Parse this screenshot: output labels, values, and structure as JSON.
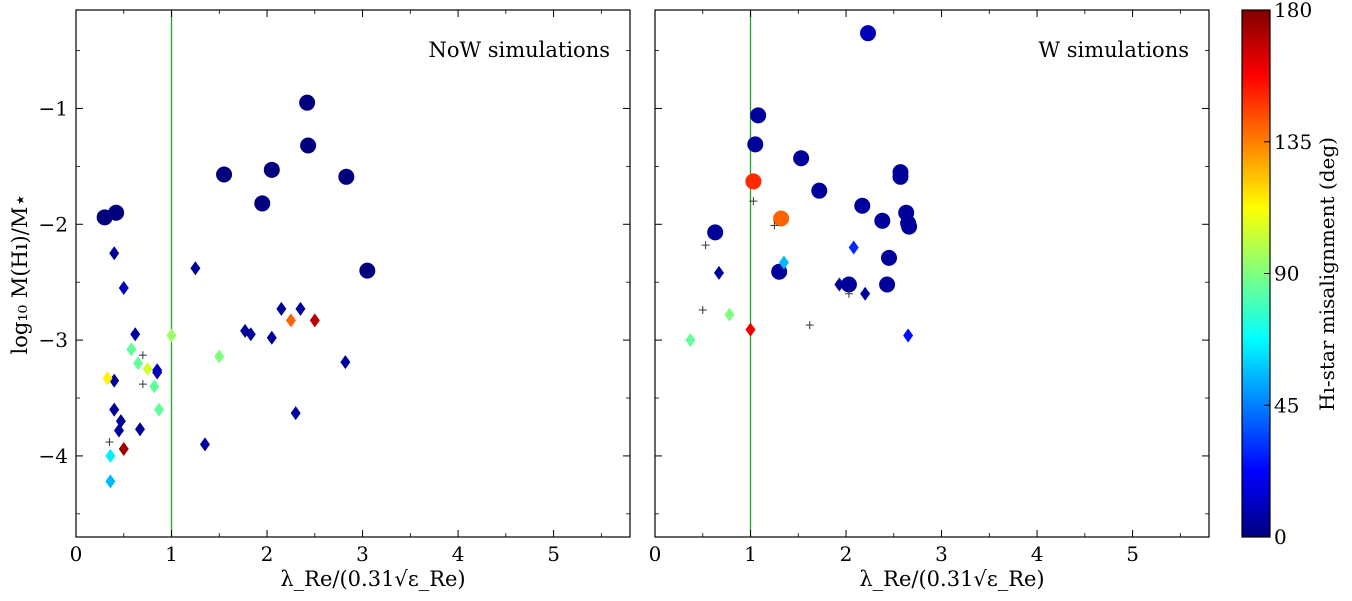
{
  "figure": {
    "ylabel": "log₁₀ M(Hı)/M⋆",
    "xlabel": "λ_Re/(0.31√ε_Re)"
  },
  "colorbar": {
    "label": "Hı-star misalignment (deg)",
    "ticks": [
      "0",
      "45",
      "90",
      "135",
      "180"
    ],
    "range": [
      0,
      180
    ],
    "colormap": "jet",
    "colors": [
      "#00007f",
      "#0000ff",
      "#007fff",
      "#00ffff",
      "#7fff7f",
      "#ffff00",
      "#ff7f00",
      "#ff0000",
      "#7f0000"
    ]
  },
  "colors": {
    "threshold_line": "#2ca02c",
    "no_measurement_marker": "#333333"
  },
  "chart_data": [
    {
      "type": "scatter",
      "title": "NoW simulations",
      "xlabel": "λ_Re/(0.31√ε_Re)",
      "ylabel": "log₁₀ M(Hı)/M⋆",
      "xlim": [
        0,
        5.8
      ],
      "ylim": [
        -4.7,
        -0.15
      ],
      "xticks": [
        "0",
        "1",
        "2",
        "3",
        "4",
        "5"
      ],
      "yticks": [
        "−1",
        "−2",
        "−3",
        "−4"
      ],
      "vertical_line_x": 1,
      "series": [
        {
          "marker": "circle",
          "points": [
            {
              "x": 0.3,
              "y": -1.94,
              "c": 0
            },
            {
              "x": 0.42,
              "y": -1.9,
              "c": 0
            },
            {
              "x": 1.55,
              "y": -1.57,
              "c": 0
            },
            {
              "x": 1.95,
              "y": -1.82,
              "c": 0
            },
            {
              "x": 2.05,
              "y": -1.53,
              "c": 0
            },
            {
              "x": 2.42,
              "y": -0.95,
              "c": 0
            },
            {
              "x": 2.43,
              "y": -1.32,
              "c": 0
            },
            {
              "x": 2.83,
              "y": -1.59,
              "c": 0
            },
            {
              "x": 3.05,
              "y": -2.4,
              "c": 0
            }
          ]
        },
        {
          "marker": "diamond",
          "points": [
            {
              "x": 0.4,
              "y": -2.25,
              "c": 5
            },
            {
              "x": 0.5,
              "y": -2.55,
              "c": 10
            },
            {
              "x": 0.62,
              "y": -2.95,
              "c": 5
            },
            {
              "x": 0.4,
              "y": -3.35,
              "c": 5
            },
            {
              "x": 0.4,
              "y": -3.6,
              "c": 5
            },
            {
              "x": 0.47,
              "y": -3.7,
              "c": 5
            },
            {
              "x": 0.45,
              "y": -3.78,
              "c": 5
            },
            {
              "x": 0.67,
              "y": -3.77,
              "c": 5
            },
            {
              "x": 0.85,
              "y": -3.26,
              "c": 10
            },
            {
              "x": 0.85,
              "y": -3.28,
              "c": 10
            },
            {
              "x": 0.33,
              "y": -3.33,
              "c": 115
            },
            {
              "x": 0.58,
              "y": -3.08,
              "c": 85
            },
            {
              "x": 0.65,
              "y": -3.2,
              "c": 85
            },
            {
              "x": 0.75,
              "y": -3.25,
              "c": 105
            },
            {
              "x": 0.82,
              "y": -3.4,
              "c": 85
            },
            {
              "x": 0.87,
              "y": -3.6,
              "c": 85
            },
            {
              "x": 0.36,
              "y": -4.0,
              "c": 65
            },
            {
              "x": 0.36,
              "y": -4.22,
              "c": 55
            },
            {
              "x": 0.5,
              "y": -3.94,
              "c": 175
            },
            {
              "x": 1.0,
              "y": -2.96,
              "c": 95
            },
            {
              "x": 1.25,
              "y": -2.38,
              "c": 5
            },
            {
              "x": 1.35,
              "y": -3.9,
              "c": 5
            },
            {
              "x": 1.5,
              "y": -3.14,
              "c": 90
            },
            {
              "x": 1.77,
              "y": -2.92,
              "c": 5
            },
            {
              "x": 1.83,
              "y": -2.95,
              "c": 5
            },
            {
              "x": 2.05,
              "y": -2.98,
              "c": 5
            },
            {
              "x": 2.15,
              "y": -2.73,
              "c": 5
            },
            {
              "x": 2.35,
              "y": -2.73,
              "c": 5
            },
            {
              "x": 2.25,
              "y": -2.83,
              "c": 140
            },
            {
              "x": 2.5,
              "y": -2.83,
              "c": 170
            },
            {
              "x": 2.3,
              "y": -3.63,
              "c": 5
            },
            {
              "x": 2.82,
              "y": -3.19,
              "c": 5
            }
          ]
        },
        {
          "marker": "plus",
          "points": [
            {
              "x": 0.35,
              "y": -3.88
            },
            {
              "x": 0.7,
              "y": -3.13
            },
            {
              "x": 0.7,
              "y": -3.38
            }
          ]
        }
      ]
    },
    {
      "type": "scatter",
      "title": "W simulations",
      "xlabel": "λ_Re/(0.31√ε_Re)",
      "xlim": [
        0,
        5.8
      ],
      "ylim": [
        -4.7,
        -0.15
      ],
      "xticks": [
        "0",
        "1",
        "2",
        "3",
        "4",
        "5"
      ],
      "vertical_line_x": 1,
      "series": [
        {
          "marker": "circle",
          "points": [
            {
              "x": 2.23,
              "y": -0.35,
              "c": 10
            },
            {
              "x": 1.08,
              "y": -1.06,
              "c": 5
            },
            {
              "x": 1.05,
              "y": -1.31,
              "c": 5
            },
            {
              "x": 1.53,
              "y": -1.43,
              "c": 5
            },
            {
              "x": 2.57,
              "y": -1.55,
              "c": 5
            },
            {
              "x": 2.57,
              "y": -1.59,
              "c": 5
            },
            {
              "x": 1.72,
              "y": -1.71,
              "c": 5
            },
            {
              "x": 2.17,
              "y": -1.84,
              "c": 5
            },
            {
              "x": 2.63,
              "y": -1.9,
              "c": 5
            },
            {
              "x": 2.38,
              "y": -1.97,
              "c": 5
            },
            {
              "x": 2.65,
              "y": -1.99,
              "c": 5
            },
            {
              "x": 2.66,
              "y": -2.02,
              "c": 5
            },
            {
              "x": 0.63,
              "y": -2.07,
              "c": 5
            },
            {
              "x": 2.45,
              "y": -2.29,
              "c": 5
            },
            {
              "x": 1.3,
              "y": -2.41,
              "c": 5
            },
            {
              "x": 2.03,
              "y": -2.52,
              "c": 5
            },
            {
              "x": 2.43,
              "y": -2.52,
              "c": 5
            },
            {
              "x": 1.03,
              "y": -1.63,
              "c": 150
            },
            {
              "x": 1.32,
              "y": -1.95,
              "c": 140
            }
          ]
        },
        {
          "marker": "diamond",
          "points": [
            {
              "x": 0.67,
              "y": -2.42,
              "c": 5
            },
            {
              "x": 1.93,
              "y": -2.52,
              "c": 5
            },
            {
              "x": 2.2,
              "y": -2.6,
              "c": 5
            },
            {
              "x": 2.08,
              "y": -2.2,
              "c": 30
            },
            {
              "x": 1.35,
              "y": -2.33,
              "c": 55
            },
            {
              "x": 2.65,
              "y": -2.96,
              "c": 25
            },
            {
              "x": 0.37,
              "y": -3.0,
              "c": 85
            },
            {
              "x": 0.78,
              "y": -2.78,
              "c": 90
            },
            {
              "x": 1.0,
              "y": -2.91,
              "c": 160
            }
          ]
        },
        {
          "marker": "plus",
          "points": [
            {
              "x": 0.53,
              "y": -2.18
            },
            {
              "x": 1.03,
              "y": -1.8
            },
            {
              "x": 1.25,
              "y": -2.01
            },
            {
              "x": 0.5,
              "y": -2.74
            },
            {
              "x": 1.62,
              "y": -2.87
            },
            {
              "x": 2.03,
              "y": -2.6
            }
          ]
        }
      ]
    }
  ]
}
